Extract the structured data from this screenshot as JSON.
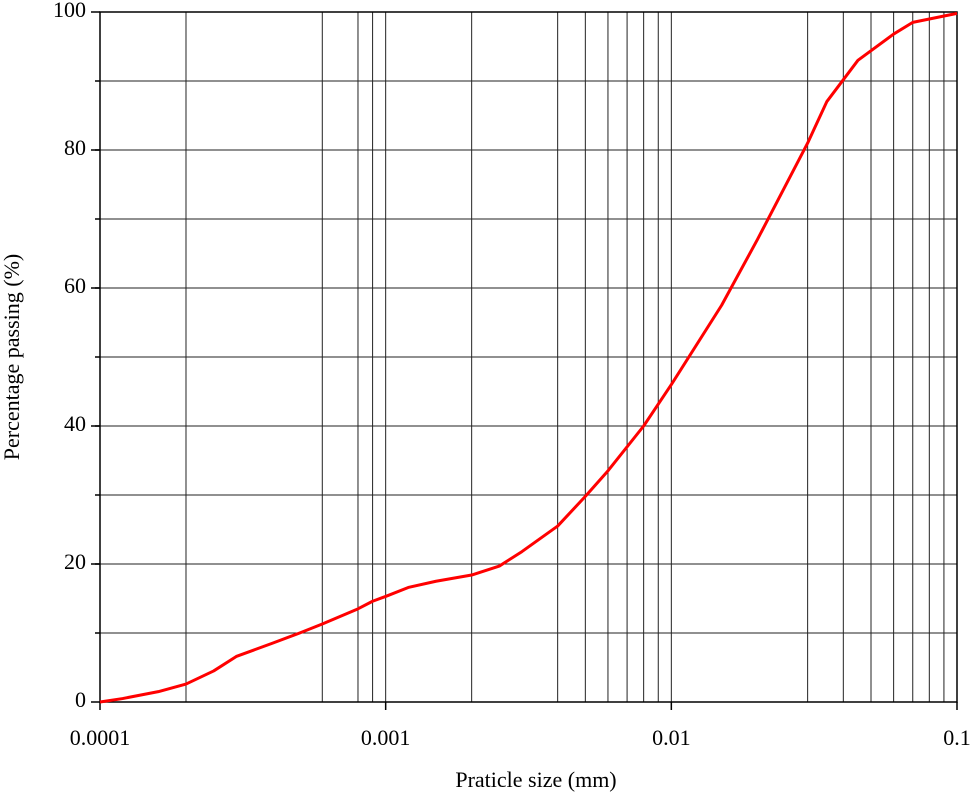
{
  "chart_data": {
    "type": "line",
    "xlabel": "Praticle size (mm)",
    "ylabel": "Percentage passing (%)",
    "xscale": "log",
    "x": [
      0.0001,
      0.00012,
      0.00016,
      0.0002,
      0.00025,
      0.0003,
      0.0004,
      0.0005,
      0.0006,
      0.0008,
      0.0009,
      0.001,
      0.0012,
      0.0015,
      0.002,
      0.0025,
      0.003,
      0.004,
      0.005,
      0.006,
      0.008,
      0.01,
      0.015,
      0.02,
      0.03,
      0.035,
      0.045,
      0.06,
      0.07,
      0.1
    ],
    "series": [
      {
        "color": "#ff0000",
        "values": [
          0,
          0.5,
          1.5,
          2.6,
          4.5,
          6.6,
          8.5,
          10,
          11.3,
          13.5,
          14.6,
          15.3,
          16.6,
          17.5,
          18.4,
          19.7,
          21.8,
          25.5,
          29.8,
          33.5,
          40,
          46,
          57.5,
          67,
          81,
          87,
          93,
          96.8,
          98.5,
          99.8
        ]
      }
    ],
    "xlim": [
      0.0001,
      0.1
    ],
    "ylim": [
      0,
      100
    ],
    "xticks": [
      0.0001,
      0.001,
      0.01,
      0.1
    ],
    "yticks": [
      0,
      20,
      40,
      60,
      80,
      100
    ],
    "xgrid": [
      0.0002,
      0.0006,
      0.0008,
      0.0009,
      0.001,
      0.002,
      0.004,
      0.005,
      0.006,
      0.007,
      0.008,
      0.009,
      0.01,
      0.03,
      0.04,
      0.05,
      0.06,
      0.07,
      0.08,
      0.09
    ],
    "ygrid": [
      10,
      20,
      30,
      40,
      50,
      60,
      70,
      80,
      90
    ]
  }
}
